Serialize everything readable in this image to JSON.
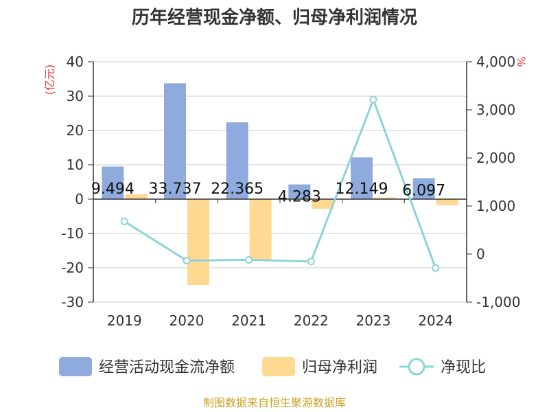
{
  "chart_data": {
    "type": "bar",
    "title": "历年经营现金净额、归母净利润情况",
    "categories": [
      "2019",
      "2020",
      "2021",
      "2022",
      "2023",
      "2024"
    ],
    "series": [
      {
        "name": "经营活动现金流净额",
        "type": "bar",
        "axis": "left",
        "color": "#8faadc",
        "values": [
          9.494,
          33.737,
          22.365,
          4.283,
          12.149,
          6.097
        ],
        "labels": [
          "9.494",
          "33.737",
          "22.365",
          "4.283",
          "12.149",
          "6.097"
        ]
      },
      {
        "name": "归母净利润",
        "type": "bar",
        "axis": "left",
        "color": "#ffd891",
        "values": [
          1.4,
          -25,
          -18,
          -2.8,
          0.5,
          -1.8
        ]
      },
      {
        "name": "净现比",
        "type": "line",
        "axis": "right",
        "color": "#8dd3d7",
        "values": [
          678,
          -135,
          -120,
          -155,
          3215,
          -290
        ]
      }
    ],
    "left_axis": {
      "unit": "(亿元)",
      "ylim": [
        -30,
        40
      ],
      "ticks": [
        {
          "v": 40,
          "label": "40"
        },
        {
          "v": 30,
          "label": "30"
        },
        {
          "v": 20,
          "label": "20"
        },
        {
          "v": 10,
          "label": "10"
        },
        {
          "v": 0,
          "label": "0"
        },
        {
          "v": -10,
          "label": "-10"
        },
        {
          "v": -20,
          "label": "-20"
        },
        {
          "v": -30,
          "label": "-30"
        }
      ]
    },
    "right_axis": {
      "unit": "%",
      "ylim": [
        -1000,
        4000
      ],
      "ticks": [
        {
          "v": 4000,
          "label": "4,000"
        },
        {
          "v": 3000,
          "label": "3,000"
        },
        {
          "v": 2000,
          "label": "2,000"
        },
        {
          "v": 1000,
          "label": "1,000"
        },
        {
          "v": 0,
          "label": "0"
        },
        {
          "v": -1000,
          "label": "-1,000"
        }
      ]
    },
    "grid": true,
    "legend_position": "bottom",
    "source": "制图数据来自恒生聚源数据库"
  }
}
